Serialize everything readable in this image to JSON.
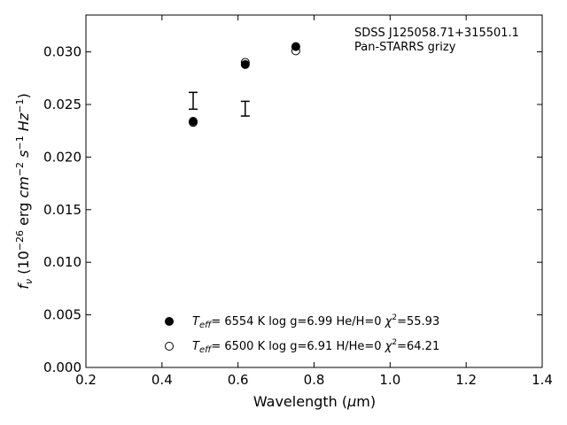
{
  "chart_data": {
    "type": "scatter",
    "xlabel": "Wavelength (μm)",
    "ylabel": "f_ν (10^-26 erg cm^-2 s^-1 Hz^-1)",
    "xlim": [
      0.2,
      1.4
    ],
    "ylim": [
      0.0,
      0.0335
    ],
    "xticks": [
      "0.2",
      "0.4",
      "0.6",
      "0.8",
      "1.0",
      "1.2",
      "1.4"
    ],
    "yticks": [
      "0.000",
      "0.005",
      "0.010",
      "0.015",
      "0.020",
      "0.025",
      "0.030"
    ],
    "grid": false,
    "annotation": {
      "line1": "SDSS J125058.71+315501.1",
      "line2": "Pan-STARRS grizy"
    },
    "observed_errorbars": [
      {
        "x": 0.482,
        "y": 0.02535,
        "yerr": 0.0008
      },
      {
        "x": 0.619,
        "y": 0.0246,
        "yerr": 0.0007
      }
    ],
    "series": [
      {
        "marker": "filled-circle",
        "legend": {
          "teff": "6554 K",
          "logg": "log g=6.99",
          "comp": "He/H=0",
          "chi2": "=55.93"
        },
        "points": [
          {
            "x": 0.482,
            "y": 0.0234
          },
          {
            "x": 0.619,
            "y": 0.0288
          },
          {
            "x": 0.752,
            "y": 0.0305
          }
        ]
      },
      {
        "marker": "open-circle",
        "legend": {
          "teff": "6500 K",
          "logg": "log g=6.91",
          "comp": "H/He=0",
          "chi2": "=64.21"
        },
        "points": [
          {
            "x": 0.482,
            "y": 0.0233
          },
          {
            "x": 0.619,
            "y": 0.029
          },
          {
            "x": 0.752,
            "y": 0.0301
          }
        ]
      }
    ]
  }
}
